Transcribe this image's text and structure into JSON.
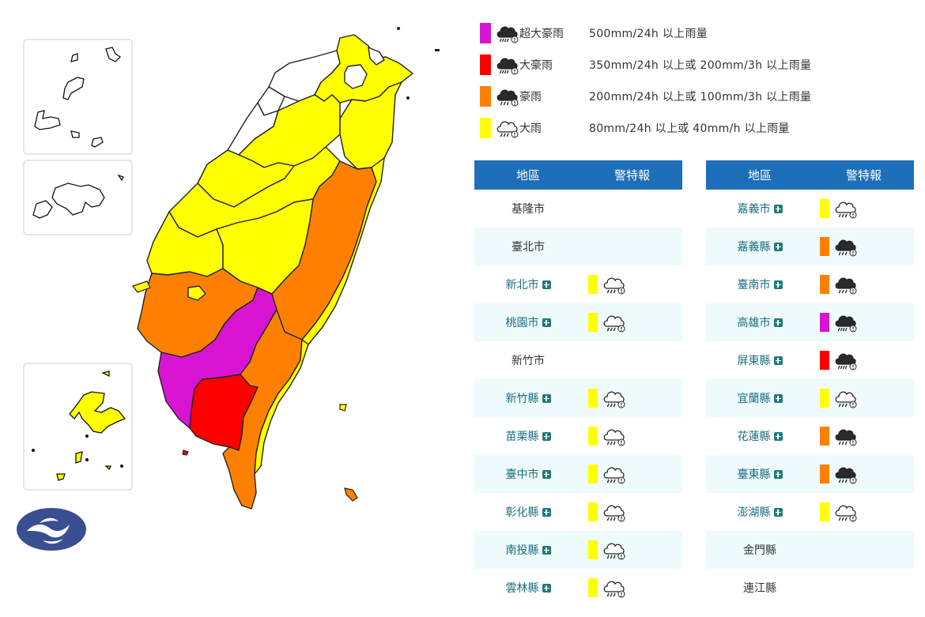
{
  "colors": {
    "extreme_torrential": "#d814d2",
    "torrential": "#ff0000",
    "extremely_heavy": "#ff8000",
    "heavy": "#ffff00",
    "none": "#ffffff",
    "header": "#1e6fb9"
  },
  "legend": [
    {
      "level": "extreme_torrential",
      "name": "超大豪雨",
      "desc": "500mm/24h 以上雨量",
      "icon": "dark-cloud-heavy-rain-icon"
    },
    {
      "level": "torrential",
      "name": "大豪雨",
      "desc": "350mm/24h 以上或 200mm/3h 以上雨量",
      "icon": "dark-cloud-heavy-rain-icon"
    },
    {
      "level": "extremely_heavy",
      "name": "豪雨",
      "desc": "200mm/24h 以上或 100mm/3h 以上雨量",
      "icon": "dark-cloud-rain-icon"
    },
    {
      "level": "heavy",
      "name": "大雨",
      "desc": "80mm/24h 以上或 40mm/h 以上雨量",
      "icon": "outline-cloud-rain-icon"
    }
  ],
  "table_headers": {
    "region": "地區",
    "warning": "警特報"
  },
  "regions_left": [
    {
      "name": "基隆市",
      "level": "none",
      "expandable": false
    },
    {
      "name": "臺北市",
      "level": "none",
      "expandable": false
    },
    {
      "name": "新北市",
      "level": "heavy",
      "expandable": true
    },
    {
      "name": "桃園市",
      "level": "heavy",
      "expandable": true
    },
    {
      "name": "新竹市",
      "level": "none",
      "expandable": false
    },
    {
      "name": "新竹縣",
      "level": "heavy",
      "expandable": true
    },
    {
      "name": "苗栗縣",
      "level": "heavy",
      "expandable": true
    },
    {
      "name": "臺中市",
      "level": "heavy",
      "expandable": true
    },
    {
      "name": "彰化縣",
      "level": "heavy",
      "expandable": true
    },
    {
      "name": "南投縣",
      "level": "heavy",
      "expandable": true
    },
    {
      "name": "雲林縣",
      "level": "heavy",
      "expandable": true
    }
  ],
  "regions_right": [
    {
      "name": "嘉義市",
      "level": "heavy",
      "expandable": true
    },
    {
      "name": "嘉義縣",
      "level": "extremely_heavy",
      "expandable": true
    },
    {
      "name": "臺南市",
      "level": "extremely_heavy",
      "expandable": true
    },
    {
      "name": "高雄市",
      "level": "extreme_torrential",
      "expandable": true
    },
    {
      "name": "屏東縣",
      "level": "torrential",
      "expandable": true
    },
    {
      "name": "宜蘭縣",
      "level": "heavy",
      "expandable": true
    },
    {
      "name": "花蓮縣",
      "level": "extremely_heavy",
      "expandable": true
    },
    {
      "name": "臺東縣",
      "level": "extremely_heavy",
      "expandable": true
    },
    {
      "name": "澎湖縣",
      "level": "heavy",
      "expandable": true
    },
    {
      "name": "金門縣",
      "level": "none",
      "expandable": false
    },
    {
      "name": "連江縣",
      "level": "none",
      "expandable": false
    }
  ]
}
